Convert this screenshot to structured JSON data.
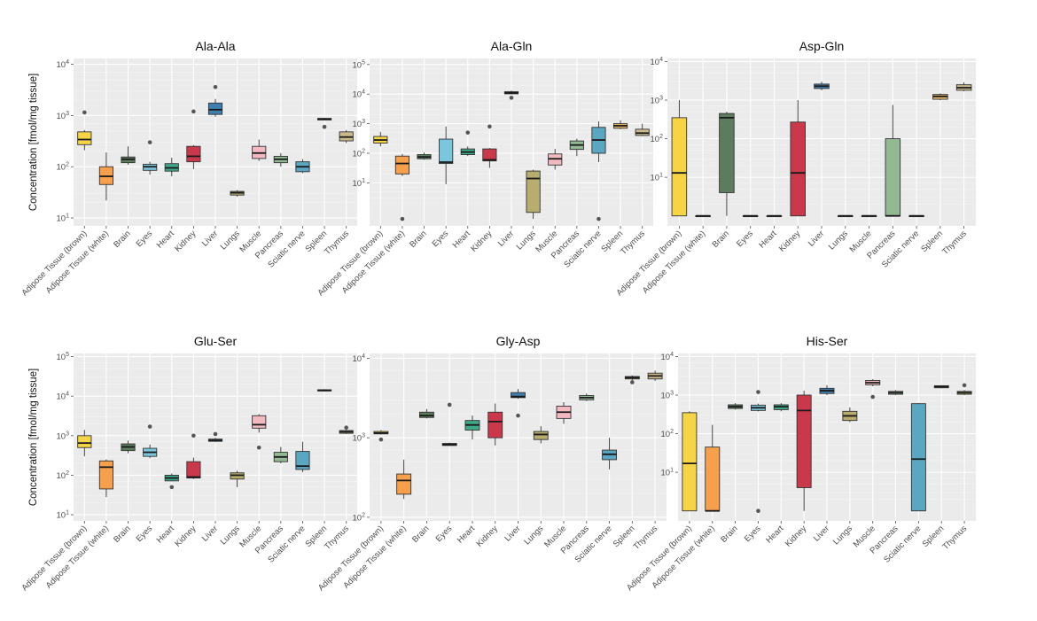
{
  "figure": {
    "ylabel": "Concentration [fmol/mg tissue]"
  },
  "categories": [
    "Adipose Tissue (brown)",
    "Adipose Tissue (white)",
    "Brain",
    "Eyes",
    "Heart",
    "Kidney",
    "Liver",
    "Lungs",
    "Muscle",
    "Pancreas",
    "Sciatic nerve",
    "Spleen",
    "Thymus"
  ],
  "colors": [
    "#f5d547",
    "#f6a04d",
    "#5d7c5e",
    "#7cc6dc",
    "#3fa88a",
    "#c9384b",
    "#3f7fb0",
    "#b6ad6e",
    "#f3b9c0",
    "#93b894",
    "#5ba6c0",
    "#e6b66a",
    "#c9b98d"
  ],
  "chart_data": [
    {
      "type": "box",
      "title": "Ala-Ala",
      "ylabel": "Concentration [fmol/mg tissue]",
      "yscale": "log",
      "ylim": [
        7,
        13000
      ],
      "yticks": [
        {
          "v": 10,
          "e": "1"
        },
        {
          "v": 100,
          "e": "2"
        },
        {
          "v": 1000,
          "e": "3"
        },
        {
          "v": 10000,
          "e": "4"
        }
      ],
      "boxes": [
        {
          "cat": "Adipose Tissue (brown)",
          "lo": 210,
          "q1": 270,
          "med": 340,
          "q3": 480,
          "hi": 520,
          "out": [
            1150
          ]
        },
        {
          "cat": "Adipose Tissue (white)",
          "lo": 22,
          "q1": 45,
          "med": 65,
          "q3": 100,
          "hi": 190,
          "out": []
        },
        {
          "cat": "Brain",
          "lo": 110,
          "q1": 120,
          "med": 140,
          "q3": 155,
          "hi": 250,
          "out": []
        },
        {
          "cat": "Eyes",
          "lo": 70,
          "q1": 85,
          "med": 100,
          "q3": 112,
          "hi": 125,
          "out": [
            300
          ]
        },
        {
          "cat": "Heart",
          "lo": 65,
          "q1": 82,
          "med": 95,
          "q3": 115,
          "hi": 150,
          "out": []
        },
        {
          "cat": "Kidney",
          "lo": 90,
          "q1": 125,
          "med": 160,
          "q3": 250,
          "hi": 265,
          "out": [
            1200
          ]
        },
        {
          "cat": "Liver",
          "lo": 950,
          "q1": 1050,
          "med": 1300,
          "q3": 1750,
          "hi": 2100,
          "out": [
            3600
          ]
        },
        {
          "cat": "Lungs",
          "lo": 26,
          "q1": 28,
          "med": 31,
          "q3": 33,
          "hi": 35,
          "out": []
        },
        {
          "cat": "Muscle",
          "lo": 130,
          "q1": 145,
          "med": 185,
          "q3": 250,
          "hi": 340,
          "out": []
        },
        {
          "cat": "Pancreas",
          "lo": 100,
          "q1": 120,
          "med": 140,
          "q3": 160,
          "hi": 185,
          "out": []
        },
        {
          "cat": "Sciatic nerve",
          "lo": 75,
          "q1": 80,
          "med": 100,
          "q3": 125,
          "hi": 140,
          "out": []
        },
        {
          "cat": "Spleen",
          "lo": 800,
          "q1": 820,
          "med": 850,
          "q3": 880,
          "hi": 900,
          "out": [
            600
          ]
        },
        {
          "cat": "Thymus",
          "lo": 290,
          "q1": 320,
          "med": 380,
          "q3": 480,
          "hi": 520,
          "out": []
        }
      ]
    },
    {
      "type": "box",
      "title": "Ala-Gln",
      "ylabel": "",
      "yscale": "log",
      "ylim": [
        0.35,
        160000
      ],
      "yticks": [
        {
          "v": 10,
          "e": "1"
        },
        {
          "v": 100,
          "e": "2"
        },
        {
          "v": 1000,
          "e": "3"
        },
        {
          "v": 10000,
          "e": "4"
        },
        {
          "v": 100000,
          "e": "5"
        }
      ],
      "boxes": [
        {
          "cat": "Adipose Tissue (brown)",
          "lo": 170,
          "q1": 220,
          "med": 280,
          "q3": 370,
          "hi": 530,
          "out": []
        },
        {
          "cat": "Adipose Tissue (white)",
          "lo": 17,
          "q1": 20,
          "med": 45,
          "q3": 80,
          "hi": 95,
          "out": [
            0.6
          ]
        },
        {
          "cat": "Brain",
          "lo": 60,
          "q1": 65,
          "med": 75,
          "q3": 90,
          "hi": 105,
          "out": []
        },
        {
          "cat": "Eyes",
          "lo": 9,
          "q1": 45,
          "med": 50,
          "q3": 300,
          "hi": 800,
          "out": []
        },
        {
          "cat": "Heart",
          "lo": 80,
          "q1": 90,
          "med": 110,
          "q3": 140,
          "hi": 170,
          "out": [
            500
          ]
        },
        {
          "cat": "Kidney",
          "lo": 32,
          "q1": 55,
          "med": 60,
          "q3": 140,
          "hi": 150,
          "out": [
            800
          ]
        },
        {
          "cat": "Liver",
          "lo": 9800,
          "q1": 10200,
          "med": 11000,
          "q3": 12000,
          "hi": 13000,
          "out": [
            7500
          ]
        },
        {
          "cat": "Lungs",
          "lo": 0.6,
          "q1": 1.0,
          "med": 14,
          "q3": 25,
          "hi": 28,
          "out": []
        },
        {
          "cat": "Muscle",
          "lo": 28,
          "q1": 40,
          "med": 65,
          "q3": 95,
          "hi": 140,
          "out": []
        },
        {
          "cat": "Pancreas",
          "lo": 80,
          "q1": 135,
          "med": 190,
          "q3": 260,
          "hi": 310,
          "out": []
        },
        {
          "cat": "Sciatic nerve",
          "lo": 50,
          "q1": 100,
          "med": 280,
          "q3": 750,
          "hi": 1200,
          "out": [
            0.6
          ]
        },
        {
          "cat": "Spleen",
          "lo": 650,
          "q1": 700,
          "med": 850,
          "q3": 1000,
          "hi": 1300,
          "out": []
        },
        {
          "cat": "Thymus",
          "lo": 380,
          "q1": 400,
          "med": 480,
          "q3": 650,
          "hi": 1000,
          "out": []
        }
      ]
    },
    {
      "type": "box",
      "title": "Asp-Gln",
      "ylabel": "",
      "yscale": "log",
      "ylim": [
        0.55,
        12000
      ],
      "yticks": [
        {
          "v": 10,
          "e": "1"
        },
        {
          "v": 100,
          "e": "2"
        },
        {
          "v": 1000,
          "e": "3"
        },
        {
          "v": 10000,
          "e": "4"
        }
      ],
      "boxes": [
        {
          "cat": "Adipose Tissue (brown)",
          "lo": 1,
          "q1": 1,
          "med": 13,
          "q3": 350,
          "hi": 1000,
          "out": []
        },
        {
          "cat": "Adipose Tissue (white)",
          "lo": 1,
          "q1": 1,
          "med": 1,
          "q3": 1,
          "hi": 1,
          "out": []
        },
        {
          "cat": "Brain",
          "lo": 1,
          "q1": 4,
          "med": 350,
          "q3": 450,
          "hi": 500,
          "out": []
        },
        {
          "cat": "Eyes",
          "lo": 1,
          "q1": 1,
          "med": 1,
          "q3": 1,
          "hi": 1,
          "out": []
        },
        {
          "cat": "Heart",
          "lo": 1,
          "q1": 1,
          "med": 1,
          "q3": 1,
          "hi": 1,
          "out": []
        },
        {
          "cat": "Kidney",
          "lo": 1,
          "q1": 1,
          "med": 13,
          "q3": 270,
          "hi": 1000,
          "out": []
        },
        {
          "cat": "Liver",
          "lo": 1800,
          "q1": 2000,
          "med": 2300,
          "q3": 2600,
          "hi": 3000,
          "out": []
        },
        {
          "cat": "Lungs",
          "lo": 1,
          "q1": 1,
          "med": 1,
          "q3": 1,
          "hi": 1,
          "out": []
        },
        {
          "cat": "Muscle",
          "lo": 1,
          "q1": 1,
          "med": 1,
          "q3": 1,
          "hi": 1,
          "out": []
        },
        {
          "cat": "Pancreas",
          "lo": 1,
          "q1": 1,
          "med": 1,
          "q3": 100,
          "hi": 750,
          "out": []
        },
        {
          "cat": "Sciatic nerve",
          "lo": 1,
          "q1": 1,
          "med": 1,
          "q3": 1,
          "hi": 1,
          "out": []
        },
        {
          "cat": "Spleen",
          "lo": 1000,
          "q1": 1050,
          "med": 1250,
          "q3": 1400,
          "hi": 1500,
          "out": []
        },
        {
          "cat": "Thymus",
          "lo": 1700,
          "q1": 1800,
          "med": 2100,
          "q3": 2500,
          "hi": 2900,
          "out": []
        }
      ]
    },
    {
      "type": "box",
      "title": "Glu-Ser",
      "ylabel": "Concentration [fmol/mg tissue]",
      "yscale": "log",
      "ylim": [
        7,
        120000
      ],
      "yticks": [
        {
          "v": 10,
          "e": "1"
        },
        {
          "v": 100,
          "e": "2"
        },
        {
          "v": 1000,
          "e": "3"
        },
        {
          "v": 10000,
          "e": "4"
        },
        {
          "v": 100000,
          "e": "5"
        }
      ],
      "boxes": [
        {
          "cat": "Adipose Tissue (brown)",
          "lo": 300,
          "q1": 500,
          "med": 650,
          "q3": 1000,
          "hi": 1400,
          "out": []
        },
        {
          "cat": "Adipose Tissue (white)",
          "lo": 28,
          "q1": 45,
          "med": 160,
          "q3": 230,
          "hi": 250,
          "out": []
        },
        {
          "cat": "Brain",
          "lo": 360,
          "q1": 420,
          "med": 520,
          "q3": 620,
          "hi": 750,
          "out": []
        },
        {
          "cat": "Eyes",
          "lo": 270,
          "q1": 300,
          "med": 380,
          "q3": 480,
          "hi": 600,
          "out": [
            1700
          ]
        },
        {
          "cat": "Heart",
          "lo": 70,
          "q1": 72,
          "med": 85,
          "q3": 100,
          "hi": 110,
          "out": [
            50
          ]
        },
        {
          "cat": "Kidney",
          "lo": 80,
          "q1": 85,
          "med": 90,
          "q3": 220,
          "hi": 280,
          "out": [
            1000
          ]
        },
        {
          "cat": "Liver",
          "lo": 700,
          "q1": 720,
          "med": 760,
          "q3": 820,
          "hi": 880,
          "out": [
            1100
          ]
        },
        {
          "cat": "Lungs",
          "lo": 50,
          "q1": 80,
          "med": 100,
          "q3": 115,
          "hi": 130,
          "out": []
        },
        {
          "cat": "Muscle",
          "lo": 1200,
          "q1": 1550,
          "med": 1900,
          "q3": 3200,
          "hi": 3500,
          "out": [
            500
          ]
        },
        {
          "cat": "Pancreas",
          "lo": 200,
          "q1": 220,
          "med": 290,
          "q3": 380,
          "hi": 520,
          "out": []
        },
        {
          "cat": "Sciatic nerve",
          "lo": 120,
          "q1": 140,
          "med": 170,
          "q3": 400,
          "hi": 700,
          "out": []
        },
        {
          "cat": "Spleen",
          "lo": 13000,
          "q1": 13500,
          "med": 14000,
          "q3": 14500,
          "hi": 15000,
          "out": []
        },
        {
          "cat": "Thymus",
          "lo": 1100,
          "q1": 1150,
          "med": 1250,
          "q3": 1350,
          "hi": 1400,
          "out": [
            1600
          ]
        }
      ]
    },
    {
      "type": "box",
      "title": "Gly-Asp",
      "ylabel": "",
      "yscale": "log",
      "ylim": [
        90,
        11500
      ],
      "yticks": [
        {
          "v": 100,
          "e": "2"
        },
        {
          "v": 1000,
          "e": "3"
        },
        {
          "v": 10000,
          "e": "4"
        }
      ],
      "boxes": [
        {
          "cat": "Adipose Tissue (brown)",
          "lo": 1100,
          "q1": 1120,
          "med": 1150,
          "q3": 1200,
          "hi": 1250,
          "out": [
            950
          ]
        },
        {
          "cat": "Adipose Tissue (white)",
          "lo": 170,
          "q1": 195,
          "med": 290,
          "q3": 350,
          "hi": 530,
          "out": []
        },
        {
          "cat": "Brain",
          "lo": 1750,
          "q1": 1800,
          "med": 1900,
          "q3": 2100,
          "hi": 2300,
          "out": []
        },
        {
          "cat": "Eyes",
          "lo": 790,
          "q1": 800,
          "med": 820,
          "q3": 850,
          "hi": 870,
          "out": [
            2600
          ]
        },
        {
          "cat": "Heart",
          "lo": 950,
          "q1": 1250,
          "med": 1450,
          "q3": 1650,
          "hi": 1900,
          "out": []
        },
        {
          "cat": "Kidney",
          "lo": 800,
          "q1": 1000,
          "med": 1600,
          "q3": 2100,
          "hi": 2700,
          "out": []
        },
        {
          "cat": "Liver",
          "lo": 3100,
          "q1": 3200,
          "med": 3300,
          "q3": 3700,
          "hi": 4100,
          "out": [
            1900
          ]
        },
        {
          "cat": "Lungs",
          "lo": 850,
          "q1": 950,
          "med": 1100,
          "q3": 1200,
          "hi": 1400,
          "out": []
        },
        {
          "cat": "Muscle",
          "lo": 1500,
          "q1": 1750,
          "med": 2100,
          "q3": 2500,
          "hi": 2800,
          "out": []
        },
        {
          "cat": "Pancreas",
          "lo": 2900,
          "q1": 3000,
          "med": 3200,
          "q3": 3400,
          "hi": 3600,
          "out": []
        },
        {
          "cat": "Sciatic nerve",
          "lo": 400,
          "q1": 530,
          "med": 620,
          "q3": 700,
          "hi": 1000,
          "out": []
        },
        {
          "cat": "Spleen",
          "lo": 5300,
          "q1": 5500,
          "med": 5700,
          "q3": 5900,
          "hi": 6100,
          "out": [
            5000
          ]
        },
        {
          "cat": "Thymus",
          "lo": 5200,
          "q1": 5500,
          "med": 6000,
          "q3": 6500,
          "hi": 7000,
          "out": []
        }
      ]
    },
    {
      "type": "box",
      "title": "His-Ser",
      "ylabel": "",
      "yscale": "log",
      "ylim": [
        0.55,
        12000
      ],
      "yticks": [
        {
          "v": 10,
          "e": "1"
        },
        {
          "v": 100,
          "e": "2"
        },
        {
          "v": 1000,
          "e": "3"
        },
        {
          "v": 10000,
          "e": "4"
        }
      ],
      "boxes": [
        {
          "cat": "Adipose Tissue (brown)",
          "lo": 1,
          "q1": 1,
          "med": 17,
          "q3": 350,
          "hi": 380,
          "out": []
        },
        {
          "cat": "Adipose Tissue (white)",
          "lo": 1,
          "q1": 1,
          "med": 1,
          "q3": 45,
          "hi": 170,
          "out": []
        },
        {
          "cat": "Brain",
          "lo": 420,
          "q1": 450,
          "med": 500,
          "q3": 560,
          "hi": 620,
          "out": []
        },
        {
          "cat": "Eyes",
          "lo": 380,
          "q1": 400,
          "med": 470,
          "q3": 550,
          "hi": 600,
          "out": [
            1200,
            1
          ]
        },
        {
          "cat": "Heart",
          "lo": 380,
          "q1": 420,
          "med": 500,
          "q3": 560,
          "hi": 620,
          "out": []
        },
        {
          "cat": "Kidney",
          "lo": 1,
          "q1": 4,
          "med": 400,
          "q3": 1000,
          "hi": 1300,
          "out": []
        },
        {
          "cat": "Liver",
          "lo": 1000,
          "q1": 1100,
          "med": 1300,
          "q3": 1500,
          "hi": 1800,
          "out": []
        },
        {
          "cat": "Lungs",
          "lo": 200,
          "q1": 220,
          "med": 290,
          "q3": 380,
          "hi": 480,
          "out": []
        },
        {
          "cat": "Muscle",
          "lo": 1700,
          "q1": 1850,
          "med": 2100,
          "q3": 2400,
          "hi": 2600,
          "out": [
            900
          ]
        },
        {
          "cat": "Pancreas",
          "lo": 1000,
          "q1": 1050,
          "med": 1150,
          "q3": 1250,
          "hi": 1350,
          "out": []
        },
        {
          "cat": "Sciatic nerve",
          "lo": 1,
          "q1": 1,
          "med": 22,
          "q3": 600,
          "hi": 620,
          "out": []
        },
        {
          "cat": "Spleen",
          "lo": 1500,
          "q1": 1550,
          "med": 1650,
          "q3": 1750,
          "hi": 1800,
          "out": []
        },
        {
          "cat": "Thymus",
          "lo": 1000,
          "q1": 1050,
          "med": 1150,
          "q3": 1250,
          "hi": 1350,
          "out": [
            1800
          ]
        }
      ]
    }
  ]
}
